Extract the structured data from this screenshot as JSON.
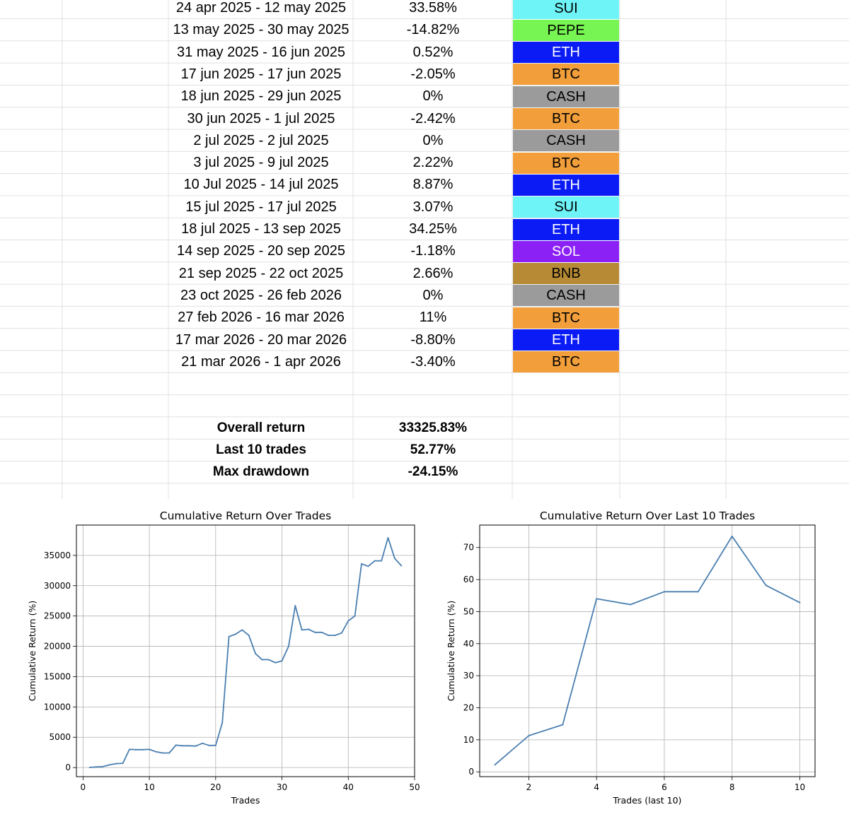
{
  "colors": {
    "SUI": "#6ef4f7",
    "PEPE": "#77f552",
    "ETH": "#0a1bf5",
    "BTC": "#f29f3b",
    "CASH": "#9b9b9b",
    "SOL": "#8b21f5",
    "BNB": "#b78b35",
    "line": "#4a7fb0"
  },
  "trades": [
    {
      "period": "24 apr 2025 - 12 may 2025",
      "ret": "33.58%",
      "asset": "SUI"
    },
    {
      "period": "13 may 2025 - 30 may 2025",
      "ret": "-14.82%",
      "asset": "PEPE"
    },
    {
      "period": "31 may 2025 - 16 jun 2025",
      "ret": "0.52%",
      "asset": "ETH"
    },
    {
      "period": "17 jun 2025 - 17 jun 2025",
      "ret": "-2.05%",
      "asset": "BTC"
    },
    {
      "period": "18 jun 2025 - 29 jun 2025",
      "ret": "0%",
      "asset": "CASH"
    },
    {
      "period": "30 jun 2025 - 1 jul 2025",
      "ret": "-2.42%",
      "asset": "BTC"
    },
    {
      "period": "2 jul 2025 - 2 jul 2025",
      "ret": "0%",
      "asset": "CASH"
    },
    {
      "period": "3 jul 2025 -  9 jul 2025",
      "ret": "2.22%",
      "asset": "BTC"
    },
    {
      "period": "10 Jul 2025 - 14 jul 2025",
      "ret": "8.87%",
      "asset": "ETH"
    },
    {
      "period": "15 jul 2025 - 17 jul 2025",
      "ret": "3.07%",
      "asset": "SUI"
    },
    {
      "period": "18 jul 2025 - 13 sep 2025",
      "ret": "34.25%",
      "asset": "ETH"
    },
    {
      "period": "14 sep 2025 - 20 sep 2025",
      "ret": "-1.18%",
      "asset": "SOL"
    },
    {
      "period": "21 sep 2025 - 22 oct 2025",
      "ret": "2.66%",
      "asset": "BNB"
    },
    {
      "period": "23 oct 2025 - 26 feb 2026",
      "ret": "0%",
      "asset": "CASH"
    },
    {
      "period": "27 feb 2026 - 16 mar 2026",
      "ret": "11%",
      "asset": "BTC"
    },
    {
      "period": "17 mar 2026 - 20 mar 2026",
      "ret": "-8.80%",
      "asset": "ETH"
    },
    {
      "period": "21 mar 2026 - 1 apr 2026",
      "ret": "-3.40%",
      "asset": "BTC"
    }
  ],
  "summary": {
    "overall_label": "Overall return",
    "overall_value": "33325.83%",
    "last10_label": "Last 10 trades",
    "last10_value": "52.77%",
    "drawdown_label": "Max drawdown",
    "drawdown_value": "-24.15%"
  },
  "chart_data": [
    {
      "type": "line",
      "title": "Cumulative Return Over Trades",
      "xlabel": "Trades",
      "ylabel": "Cumulative Return (%)",
      "xlim": [
        -1,
        50
      ],
      "ylim": [
        -1500,
        40000
      ],
      "xticks": [
        0,
        10,
        20,
        30,
        40,
        50
      ],
      "yticks": [
        0,
        5000,
        10000,
        15000,
        20000,
        25000,
        30000,
        35000
      ],
      "grid": true,
      "x": [
        1,
        2,
        3,
        4,
        5,
        6,
        7,
        8,
        9,
        10,
        11,
        12,
        13,
        14,
        15,
        16,
        17,
        18,
        19,
        20,
        21,
        22,
        23,
        24,
        25,
        26,
        27,
        28,
        29,
        30,
        31,
        32,
        33,
        34,
        35,
        36,
        37,
        38,
        39,
        40,
        41,
        42,
        43,
        44,
        45,
        46,
        47,
        48
      ],
      "values": [
        30,
        100,
        150,
        450,
        650,
        700,
        3000,
        2950,
        2950,
        3000,
        2600,
        2400,
        2400,
        3700,
        3600,
        3600,
        3550,
        4000,
        3650,
        3650,
        7400,
        21600,
        22000,
        22700,
        21800,
        18800,
        17800,
        17800,
        17300,
        17600,
        20000,
        26700,
        22700,
        22800,
        22300,
        22300,
        21800,
        21800,
        22200,
        24200,
        25000,
        33600,
        33200,
        34100,
        34100,
        37900,
        34500,
        33300
      ]
    },
    {
      "type": "line",
      "title": "Cumulative Return Over Last 10 Trades",
      "xlabel": "Trades (last 10)",
      "ylabel": "Cumulative Return (%)",
      "xlim": [
        0.55,
        10.45
      ],
      "ylim": [
        -1.5,
        77
      ],
      "xticks": [
        2,
        4,
        6,
        8,
        10
      ],
      "yticks": [
        0,
        10,
        20,
        30,
        40,
        50,
        60,
        70
      ],
      "grid": true,
      "x": [
        1,
        2,
        3,
        4,
        5,
        6,
        7,
        8,
        9,
        10
      ],
      "values": [
        2.2,
        11.3,
        14.7,
        54.0,
        52.2,
        56.2,
        56.2,
        73.5,
        58.2,
        52.8
      ]
    }
  ]
}
